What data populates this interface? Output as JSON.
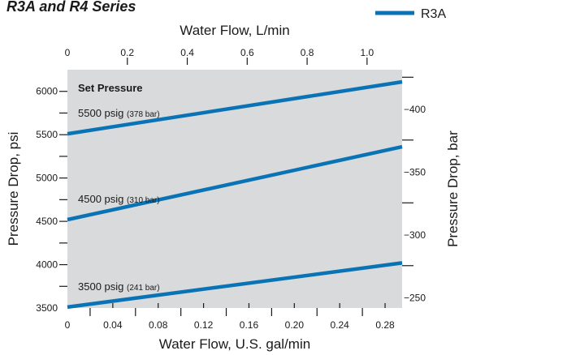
{
  "chart_data": {
    "type": "line",
    "title": "R3A and R4 Series",
    "legend": {
      "entries": [
        "R3A"
      ],
      "placement": "top-right"
    },
    "x_bottom": {
      "label": "Water Flow, U.S. gal/min",
      "range": [
        0,
        0.295
      ],
      "ticks": [
        0,
        0.04,
        0.08,
        0.12,
        0.16,
        0.2,
        0.24,
        0.28
      ],
      "tick_labels": [
        "0",
        "0.04",
        "0.08",
        "0.12",
        "0.16",
        "0.20",
        "0.24",
        "0.28"
      ]
    },
    "x_top": {
      "label": "Water Flow, L/min",
      "range": [
        0,
        1.117
      ],
      "ticks": [
        0,
        0.2,
        0.4,
        0.6,
        0.8,
        1.0
      ],
      "tick_labels": [
        "0",
        "0.2",
        "0.4",
        "0.6",
        "0.8",
        "1.0"
      ]
    },
    "y_left": {
      "label": "Pressure Drop, psi",
      "range": [
        3500,
        6250
      ],
      "ticks": [
        3500,
        4000,
        4500,
        5000,
        5500,
        6000
      ],
      "tick_labels": [
        "3500",
        "4000",
        "4500",
        "5000",
        "5500",
        "6000"
      ]
    },
    "y_right": {
      "label": "Pressure Drop, bar",
      "range": [
        241.3,
        431
      ],
      "ticks": [
        250,
        300,
        350,
        400
      ],
      "tick_labels": [
        "−250",
        "−300",
        "−350",
        "−400"
      ]
    },
    "annotation_heading": "Set Pressure",
    "series": [
      {
        "name": "5500 psig",
        "sub": "(378 bar)",
        "x": [
          0,
          0.295
        ],
        "y": [
          5510,
          6110
        ]
      },
      {
        "name": "4500 psig",
        "sub": "(310 bar)",
        "x": [
          0,
          0.295
        ],
        "y": [
          4520,
          5360
        ]
      },
      {
        "name": "3500 psig",
        "sub": "(241 bar)",
        "x": [
          0,
          0.295
        ],
        "y": [
          3510,
          4020
        ]
      }
    ],
    "colors": {
      "series": "#0a73b6",
      "plot_background": "#d9dadb"
    },
    "grid": false
  }
}
